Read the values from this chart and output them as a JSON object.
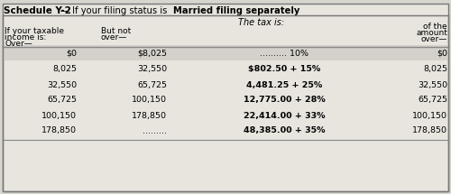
{
  "title_bold": "Schedule Y-2",
  "title_dash": "—",
  "title_normal": " If your filing status is ",
  "title_bold2": "Married filing separately",
  "header_tax": "The tax is:",
  "col1_h1": "If your taxable",
  "col1_h2": "income is:",
  "col2_h1": "But not",
  "col2_h2": "over—",
  "col4_h1": "of the",
  "col4_h2": "amount",
  "col4_h3": "over—",
  "over_label": "Over—",
  "rows": [
    {
      "over": "$0",
      "but_not": "$8,025",
      "tax": ".......... 10%",
      "of_amount": "$0",
      "tax_bold": false
    },
    {
      "over": "8,025",
      "but_not": "32,550",
      "tax": "$802.50 + 15%",
      "of_amount": "8,025",
      "tax_bold": true
    },
    {
      "over": "32,550",
      "but_not": "65,725",
      "tax": "4,481.25 + 25%",
      "of_amount": "32,550",
      "tax_bold": true
    },
    {
      "over": "65,725",
      "but_not": "100,150",
      "tax": "12,775.00 + 28%",
      "of_amount": "65,725",
      "tax_bold": true
    },
    {
      "over": "100,150",
      "but_not": "178,850",
      "tax": "22,414.00 + 33%",
      "of_amount": "100,150",
      "tax_bold": true
    },
    {
      "over": "178,850",
      "but_not": ".........",
      "tax": "48,385.00 + 35%",
      "of_amount": "178,850",
      "tax_bold": true
    }
  ],
  "outer_bg": "#d8d5ce",
  "table_bg": "#e8e5df",
  "row0_bg": "#d4d1cb",
  "border_color": "#999999",
  "title_bg": "#d0cdc7"
}
